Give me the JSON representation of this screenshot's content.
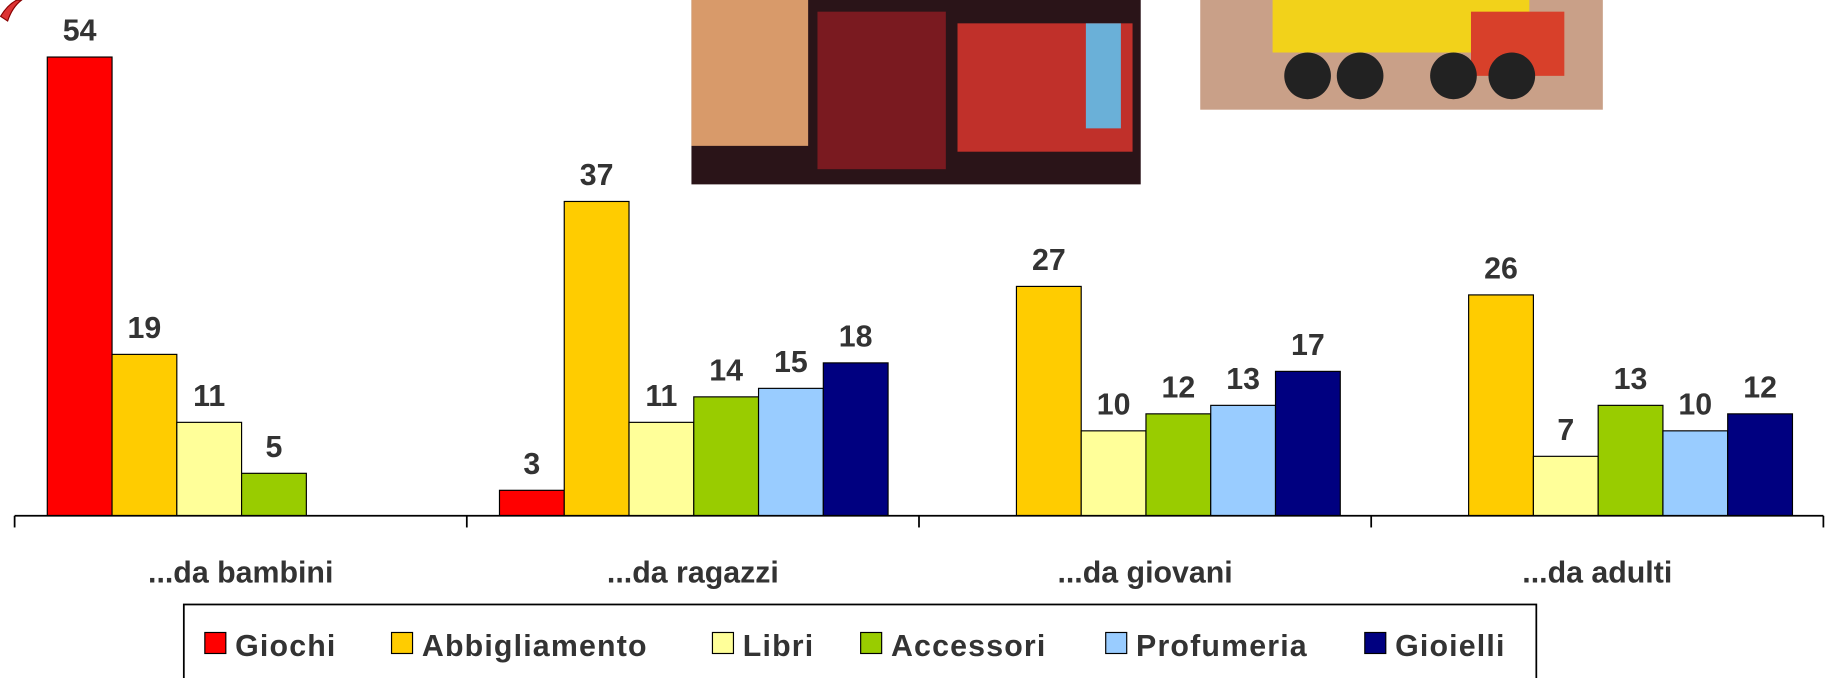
{
  "chart_data": {
    "type": "bar",
    "categories": [
      "...da bambini",
      "...da ragazzi",
      "...da giovani",
      "...da adulti"
    ],
    "series": [
      {
        "name": "Giochi",
        "color": "#ff0000",
        "values": [
          54,
          3,
          null,
          null
        ]
      },
      {
        "name": "Abbigliamento",
        "color": "#ffcc00",
        "values": [
          19,
          37,
          27,
          26
        ]
      },
      {
        "name": "Libri",
        "color": "#ffff99",
        "values": [
          11,
          11,
          10,
          7
        ]
      },
      {
        "name": "Accessori",
        "color": "#99cc00",
        "values": [
          5,
          14,
          12,
          13
        ]
      },
      {
        "name": "Profumeria",
        "color": "#99ccff",
        "values": [
          null,
          15,
          13,
          10
        ]
      },
      {
        "name": "Gioielli",
        "color": "#000080",
        "values": [
          null,
          18,
          17,
          12
        ]
      }
    ],
    "legend": "bottom"
  }
}
